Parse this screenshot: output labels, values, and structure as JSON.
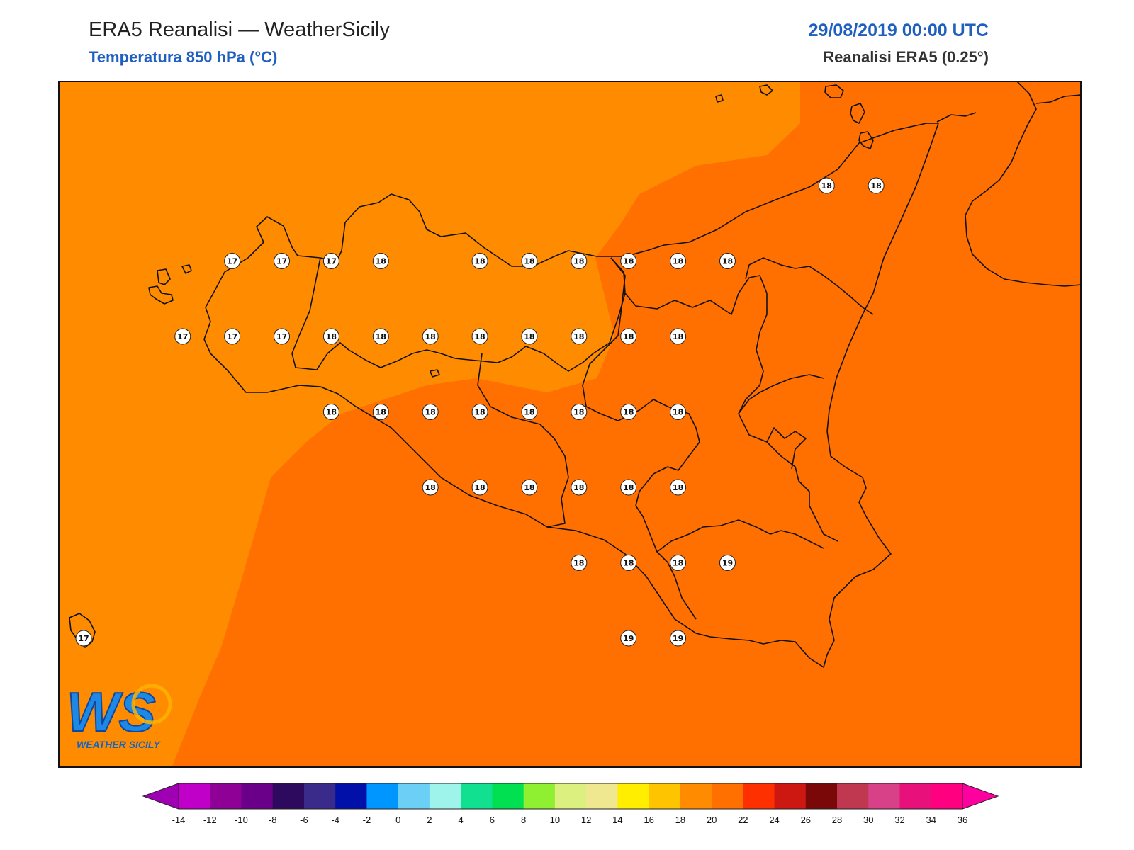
{
  "header": {
    "title": "ERA5 Reanalisi — WeatherSicily",
    "subtitle": "Temperatura 850 hPa (°C)",
    "datetime": "29/08/2019 00:00 UTC",
    "source": "Reanalisi ERA5 (0.25°)"
  },
  "logo": {
    "letters": "WS",
    "text": "WEATHER SICILY"
  },
  "colors": {
    "band_16_18": "#ff8c00",
    "band_18_20": "#ff7000",
    "coastline": "#111111"
  },
  "grid": {
    "lon_min": 11.75,
    "lon_max": 16.0,
    "lat_min": 36.25,
    "lat_max": 39.25,
    "rows": [
      {
        "lat": 38.5,
        "values": [
          [
            15.5,
            18
          ],
          [
            15.75,
            18
          ]
        ]
      },
      {
        "lat": 38.25,
        "values": [
          [
            12.5,
            17
          ],
          [
            12.75,
            17
          ],
          [
            13.0,
            17
          ],
          [
            13.25,
            18
          ],
          [
            13.75,
            18
          ],
          [
            14.0,
            18
          ],
          [
            14.25,
            18
          ],
          [
            14.5,
            18
          ],
          [
            14.75,
            18
          ],
          [
            15.0,
            18
          ]
        ]
      },
      {
        "lat": 38.0,
        "values": [
          [
            12.25,
            17
          ],
          [
            12.5,
            17
          ],
          [
            12.75,
            17
          ],
          [
            13.0,
            18
          ],
          [
            13.25,
            18
          ],
          [
            13.5,
            18
          ],
          [
            13.75,
            18
          ],
          [
            14.0,
            18
          ],
          [
            14.25,
            18
          ],
          [
            14.5,
            18
          ],
          [
            14.75,
            18
          ]
        ]
      },
      {
        "lat": 37.75,
        "values": [
          [
            13.0,
            18
          ],
          [
            13.25,
            18
          ],
          [
            13.5,
            18
          ],
          [
            13.75,
            18
          ],
          [
            14.0,
            18
          ],
          [
            14.25,
            18
          ],
          [
            14.5,
            18
          ],
          [
            14.75,
            18
          ]
        ]
      },
      {
        "lat": 37.5,
        "values": [
          [
            13.5,
            18
          ],
          [
            13.75,
            18
          ],
          [
            14.0,
            18
          ],
          [
            14.25,
            18
          ],
          [
            14.5,
            18
          ],
          [
            14.75,
            18
          ]
        ]
      },
      {
        "lat": 37.25,
        "values": [
          [
            14.25,
            18
          ],
          [
            14.5,
            18
          ],
          [
            14.75,
            18
          ],
          [
            15.0,
            19
          ]
        ]
      },
      {
        "lat": 37.0,
        "values": [
          [
            11.75,
            17
          ],
          [
            14.5,
            19
          ],
          [
            14.75,
            19
          ]
        ]
      }
    ]
  },
  "colorbar": {
    "ticks": [
      "-14",
      "-12",
      "-10",
      "-8",
      "-6",
      "-4",
      "-2",
      "0",
      "2",
      "4",
      "6",
      "8",
      "10",
      "12",
      "14",
      "16",
      "18",
      "20",
      "22",
      "24",
      "26",
      "28",
      "30",
      "32",
      "34",
      "36"
    ],
    "colors": [
      "#c000c8",
      "#8e0096",
      "#6a008a",
      "#2e0a5e",
      "#3a2a8a",
      "#0010a8",
      "#0096ff",
      "#6ccff6",
      "#9ef4ea",
      "#10e090",
      "#00e050",
      "#8ef030",
      "#dcf080",
      "#f0e890",
      "#ffee00",
      "#ffc400",
      "#ff8c00",
      "#ff7000",
      "#ff3000",
      "#cc1810",
      "#7a0808",
      "#c03850",
      "#d84088",
      "#e8107a",
      "#ff0080"
    ],
    "low_color": "#a000b4",
    "high_color": "#ff00a0"
  }
}
